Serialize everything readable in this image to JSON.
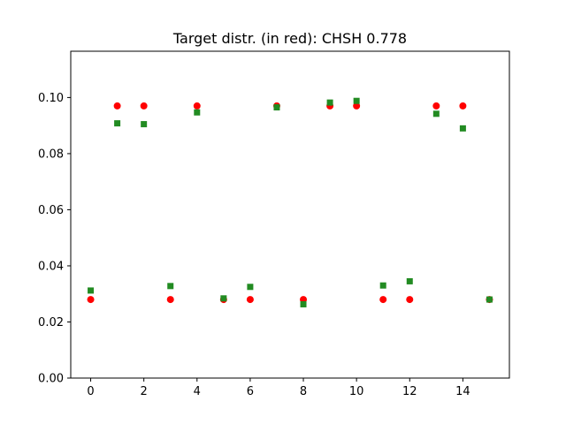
{
  "chart_data": {
    "type": "scatter",
    "title": "Target distr. (in red): CHSH 0.778",
    "xlabel": "",
    "ylabel": "",
    "xlim": [
      -0.75,
      15.75
    ],
    "ylim": [
      0.0,
      0.1165
    ],
    "grid": false,
    "legend": "none",
    "xticks": [
      0,
      2,
      4,
      6,
      8,
      10,
      12,
      14
    ],
    "xtick_labels": [
      "0",
      "2",
      "4",
      "6",
      "8",
      "10",
      "12",
      "14"
    ],
    "yticks": [
      0.0,
      0.02,
      0.04,
      0.06,
      0.08,
      0.1
    ],
    "ytick_labels": [
      "0.00",
      "0.02",
      "0.04",
      "0.06",
      "0.08",
      "0.10"
    ],
    "series": [
      {
        "marker": "circle",
        "color": "#ff0000",
        "x": [
          0,
          1,
          2,
          3,
          4,
          5,
          6,
          7,
          8,
          9,
          10,
          11,
          12,
          13,
          14,
          15
        ],
        "values": [
          0.028,
          0.097,
          0.097,
          0.028,
          0.097,
          0.028,
          0.028,
          0.097,
          0.028,
          0.097,
          0.097,
          0.028,
          0.028,
          0.097,
          0.097,
          0.028
        ]
      },
      {
        "marker": "square",
        "color": "#228b22",
        "x": [
          0,
          1,
          2,
          3,
          4,
          5,
          6,
          7,
          8,
          9,
          10,
          11,
          12,
          13,
          14,
          15
        ],
        "values": [
          0.0312,
          0.0908,
          0.0905,
          0.0328,
          0.0947,
          0.0284,
          0.0325,
          0.0965,
          0.0263,
          0.0982,
          0.0988,
          0.033,
          0.0345,
          0.0942,
          0.089,
          0.028
        ]
      }
    ]
  }
}
